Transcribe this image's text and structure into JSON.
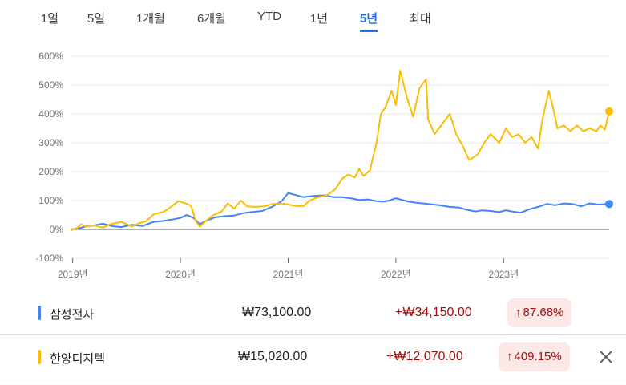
{
  "tabs": [
    {
      "label": "1일"
    },
    {
      "label": "5일"
    },
    {
      "label": "1개월"
    },
    {
      "label": "6개월"
    },
    {
      "label": "YTD"
    },
    {
      "label": "1년"
    },
    {
      "label": "5년"
    },
    {
      "label": "최대"
    }
  ],
  "active_tab": "5년",
  "rows": [
    {
      "name": "삼성전자",
      "price": "₩73,100.00",
      "change": "+₩34,150.00",
      "pct": "87.68%",
      "pct_arrow": "↑",
      "color": "#4285f4"
    },
    {
      "name": "한양디지텍",
      "price": "₩15,020.00",
      "change": "+₩12,070.00",
      "pct": "409.15%",
      "pct_arrow": "↑",
      "color": "#fbbc04",
      "close_icon": "close-icon"
    }
  ],
  "chart_data": {
    "type": "line",
    "x_ticks": [
      "2019년",
      "2020년",
      "2021년",
      "2022년",
      "2023년"
    ],
    "x_tick_positions": [
      2019.0,
      2020.0,
      2021.0,
      2022.0,
      2023.0
    ],
    "x_range": [
      2018.98,
      2023.98
    ],
    "y_ticks": [
      "600%",
      "500%",
      "400%",
      "300%",
      "200%",
      "100%",
      "0%",
      "-100%"
    ],
    "ylim": [
      -100,
      600
    ],
    "series": [
      {
        "name": "삼성전자",
        "color": "#4285f4",
        "points": [
          [
            2018.98,
            0
          ],
          [
            2019.05,
            3
          ],
          [
            2019.12,
            10
          ],
          [
            2019.2,
            14
          ],
          [
            2019.28,
            20
          ],
          [
            2019.36,
            12
          ],
          [
            2019.45,
            8
          ],
          [
            2019.55,
            16
          ],
          [
            2019.65,
            12
          ],
          [
            2019.75,
            26
          ],
          [
            2019.85,
            30
          ],
          [
            2019.92,
            34
          ],
          [
            2020.0,
            40
          ],
          [
            2020.06,
            50
          ],
          [
            2020.12,
            40
          ],
          [
            2020.18,
            18
          ],
          [
            2020.24,
            30
          ],
          [
            2020.32,
            42
          ],
          [
            2020.42,
            46
          ],
          [
            2020.5,
            48
          ],
          [
            2020.58,
            56
          ],
          [
            2020.66,
            60
          ],
          [
            2020.76,
            64
          ],
          [
            2020.86,
            80
          ],
          [
            2020.94,
            98
          ],
          [
            2021.0,
            126
          ],
          [
            2021.06,
            120
          ],
          [
            2021.14,
            112
          ],
          [
            2021.24,
            116
          ],
          [
            2021.34,
            118
          ],
          [
            2021.42,
            112
          ],
          [
            2021.5,
            112
          ],
          [
            2021.58,
            108
          ],
          [
            2021.66,
            102
          ],
          [
            2021.74,
            104
          ],
          [
            2021.82,
            98
          ],
          [
            2021.88,
            96
          ],
          [
            2021.94,
            100
          ],
          [
            2022.0,
            108
          ],
          [
            2022.06,
            102
          ],
          [
            2022.12,
            96
          ],
          [
            2022.2,
            92
          ],
          [
            2022.3,
            88
          ],
          [
            2022.4,
            84
          ],
          [
            2022.5,
            78
          ],
          [
            2022.58,
            76
          ],
          [
            2022.66,
            68
          ],
          [
            2022.74,
            62
          ],
          [
            2022.8,
            66
          ],
          [
            2022.88,
            64
          ],
          [
            2022.96,
            60
          ],
          [
            2023.02,
            66
          ],
          [
            2023.08,
            62
          ],
          [
            2023.16,
            58
          ],
          [
            2023.24,
            70
          ],
          [
            2023.32,
            78
          ],
          [
            2023.4,
            88
          ],
          [
            2023.48,
            84
          ],
          [
            2023.56,
            90
          ],
          [
            2023.64,
            88
          ],
          [
            2023.72,
            80
          ],
          [
            2023.8,
            90
          ],
          [
            2023.88,
            86
          ],
          [
            2023.98,
            88
          ]
        ]
      },
      {
        "name": "한양디지텍",
        "color": "#fbbc04",
        "points": [
          [
            2018.98,
            -4
          ],
          [
            2019.04,
            5
          ],
          [
            2019.08,
            18
          ],
          [
            2019.12,
            10
          ],
          [
            2019.2,
            14
          ],
          [
            2019.28,
            6
          ],
          [
            2019.35,
            18
          ],
          [
            2019.45,
            26
          ],
          [
            2019.55,
            10
          ],
          [
            2019.62,
            22
          ],
          [
            2019.68,
            28
          ],
          [
            2019.75,
            52
          ],
          [
            2019.85,
            62
          ],
          [
            2019.92,
            80
          ],
          [
            2019.98,
            98
          ],
          [
            2020.05,
            90
          ],
          [
            2020.1,
            82
          ],
          [
            2020.14,
            30
          ],
          [
            2020.18,
            10
          ],
          [
            2020.24,
            30
          ],
          [
            2020.3,
            48
          ],
          [
            2020.38,
            62
          ],
          [
            2020.44,
            90
          ],
          [
            2020.5,
            72
          ],
          [
            2020.56,
            100
          ],
          [
            2020.62,
            80
          ],
          [
            2020.7,
            78
          ],
          [
            2020.78,
            80
          ],
          [
            2020.86,
            88
          ],
          [
            2020.94,
            90
          ],
          [
            2021.0,
            86
          ],
          [
            2021.06,
            82
          ],
          [
            2021.14,
            80
          ],
          [
            2021.2,
            100
          ],
          [
            2021.28,
            112
          ],
          [
            2021.36,
            118
          ],
          [
            2021.44,
            140
          ],
          [
            2021.5,
            175
          ],
          [
            2021.56,
            190
          ],
          [
            2021.62,
            180
          ],
          [
            2021.66,
            210
          ],
          [
            2021.7,
            185
          ],
          [
            2021.76,
            205
          ],
          [
            2021.82,
            300
          ],
          [
            2021.86,
            400
          ],
          [
            2021.9,
            420
          ],
          [
            2021.96,
            480
          ],
          [
            2022.0,
            430
          ],
          [
            2022.04,
            550
          ],
          [
            2022.1,
            460
          ],
          [
            2022.16,
            390
          ],
          [
            2022.22,
            490
          ],
          [
            2022.28,
            520
          ],
          [
            2022.3,
            380
          ],
          [
            2022.36,
            330
          ],
          [
            2022.42,
            360
          ],
          [
            2022.5,
            400
          ],
          [
            2022.56,
            330
          ],
          [
            2022.62,
            290
          ],
          [
            2022.68,
            240
          ],
          [
            2022.76,
            260
          ],
          [
            2022.82,
            300
          ],
          [
            2022.88,
            330
          ],
          [
            2022.96,
            300
          ],
          [
            2023.02,
            350
          ],
          [
            2023.08,
            320
          ],
          [
            2023.14,
            330
          ],
          [
            2023.2,
            300
          ],
          [
            2023.26,
            320
          ],
          [
            2023.32,
            280
          ],
          [
            2023.36,
            380
          ],
          [
            2023.42,
            480
          ],
          [
            2023.46,
            420
          ],
          [
            2023.5,
            350
          ],
          [
            2023.56,
            360
          ],
          [
            2023.62,
            340
          ],
          [
            2023.68,
            360
          ],
          [
            2023.74,
            340
          ],
          [
            2023.8,
            350
          ],
          [
            2023.86,
            340
          ],
          [
            2023.9,
            360
          ],
          [
            2023.94,
            345
          ],
          [
            2023.98,
            409
          ]
        ]
      }
    ]
  }
}
